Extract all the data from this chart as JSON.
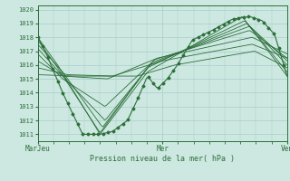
{
  "bg_color": "#cce8e0",
  "grid_color": "#aacccc",
  "line_color": "#2d6e3a",
  "xlabel": "Pression niveau de la mer( hPa )",
  "xtick_labels": [
    "MarJeu",
    "Mer",
    "Ven"
  ],
  "xtick_positions": [
    0.0,
    0.5,
    1.0
  ],
  "ylim": [
    1010.5,
    1020.3
  ],
  "yticks": [
    1011,
    1012,
    1013,
    1014,
    1015,
    1016,
    1017,
    1018,
    1019,
    1020
  ],
  "n_points": 150
}
